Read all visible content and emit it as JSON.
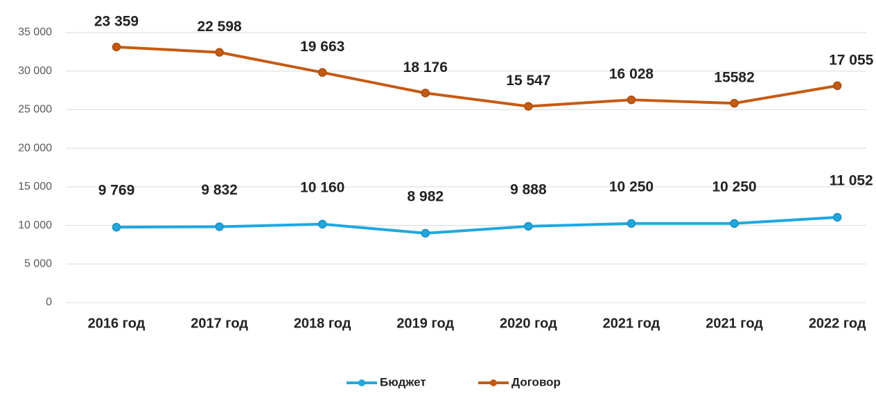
{
  "chart_data": {
    "type": "line",
    "stacked": true,
    "categories": [
      "2016 год",
      "2017 год",
      "2018 год",
      "2019 год",
      "2020 год",
      "2021 год",
      "2021 год",
      "2022 год"
    ],
    "series": [
      {
        "name": "Бюджет",
        "color": "#1fa8e0",
        "values": [
          9769,
          9832,
          10160,
          8982,
          9888,
          10250,
          10250,
          11052
        ],
        "value_labels": [
          "9 769",
          "9 832",
          "10 160",
          "8 982",
          "9 888",
          "10 250",
          "10 250",
          "11 052"
        ]
      },
      {
        "name": "Договор",
        "color": "#c55a11",
        "values": [
          23359,
          22598,
          19663,
          18176,
          15547,
          16028,
          15582,
          17055
        ],
        "value_labels": [
          "23 359",
          "22 598",
          "19 663",
          "18 176",
          "15 547",
          "16 028",
          "15582",
          "17 055"
        ]
      }
    ],
    "ylim": [
      0,
      35000
    ],
    "yticks": [
      0,
      {
        "value": 5000,
        "label": "5 000"
      },
      {
        "value": 10000,
        "label": "10 000"
      },
      {
        "value": 15000,
        "label": "15 000"
      },
      {
        "value": 20000,
        "label": "20 000"
      },
      {
        "value": 25000,
        "label": "25 000"
      },
      {
        "value": 30000,
        "label": "30 000"
      },
      {
        "value": 35000,
        "label": "35 000"
      }
    ],
    "grid": true,
    "legend": "bottom"
  }
}
